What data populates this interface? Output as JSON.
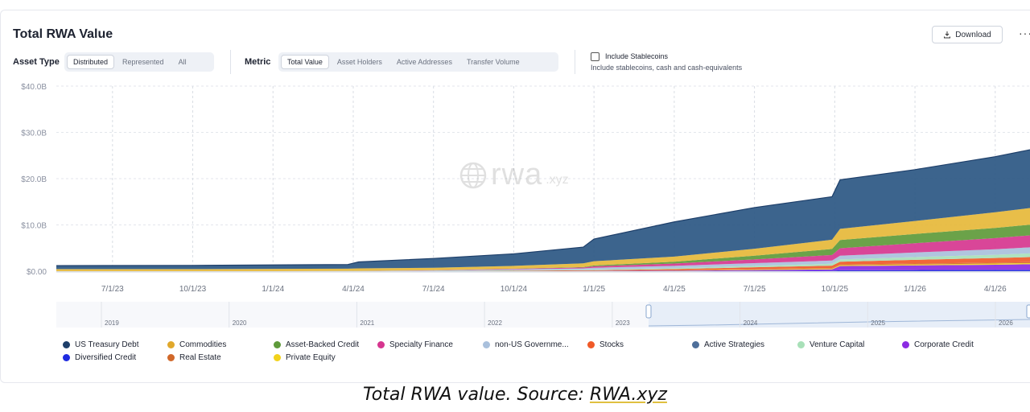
{
  "header": {
    "title": "Total RWA Value",
    "download_label": "Download",
    "more_label": "···"
  },
  "controls": {
    "asset_type_label": "Asset Type",
    "asset_type_options": [
      "Distributed",
      "Represented",
      "All"
    ],
    "asset_type_selected": "Distributed",
    "metric_label": "Metric",
    "metric_options": [
      "Total Value",
      "Asset Holders",
      "Active Addresses",
      "Transfer Volume"
    ],
    "metric_selected": "Total Value",
    "stablecoins_label": "Include Stablecoins",
    "stablecoins_desc": "Include stablecoins, cash and cash-equivalents",
    "stablecoins_checked": false
  },
  "watermark": {
    "main": "rwa",
    "suffix": ".xyz"
  },
  "chart_data": {
    "type": "area",
    "stacked": true,
    "title": "Total RWA Value",
    "y_tick_labels": [
      "$0.00",
      "$10.0B",
      "$20.0B",
      "$30.0B",
      "$40.0B"
    ],
    "y_ticks": [
      0,
      10,
      20,
      30,
      40
    ],
    "ylim": [
      0,
      40
    ],
    "y_unit": "B USD",
    "x_tick_labels": [
      "7/1/23",
      "10/1/23",
      "1/1/24",
      "4/1/24",
      "7/1/24",
      "10/1/24",
      "1/1/25",
      "4/1/25",
      "7/1/25",
      "10/1/25",
      "1/1/26",
      "4/1/26"
    ],
    "x_ticks_t": [
      1,
      4,
      7,
      10,
      13,
      16,
      19,
      22,
      25,
      28,
      31,
      34
    ],
    "xlim_t": [
      -1.1,
      35.3
    ],
    "x": [
      -1.1,
      4,
      7,
      9.8,
      10.2,
      13,
      16,
      18.6,
      19,
      22,
      25,
      27.9,
      28.2,
      31,
      34,
      35.3
    ],
    "series": [
      {
        "name": "Diversified Credit",
        "color": "#1f2be0",
        "values": [
          0,
          0,
          0,
          0,
          0,
          0,
          0,
          0,
          0,
          0,
          0.05,
          0.1,
          0.2,
          0.25,
          0.3,
          0.3
        ]
      },
      {
        "name": "Corporate Credit",
        "color": "#8b2be2",
        "values": [
          0,
          0,
          0,
          0,
          0,
          0,
          0,
          0.05,
          0.05,
          0.1,
          0.2,
          0.3,
          0.9,
          1.0,
          1.1,
          1.2
        ]
      },
      {
        "name": "Private Equity",
        "color": "#f2d21b",
        "values": [
          0,
          0,
          0,
          0,
          0,
          0,
          0,
          0,
          0,
          0.05,
          0.1,
          0.15,
          0.2,
          0.2,
          0.25,
          0.25
        ]
      },
      {
        "name": "Real Estate",
        "color": "#d1682a",
        "values": [
          0,
          0,
          0,
          0,
          0,
          0,
          0.05,
          0.05,
          0.05,
          0.1,
          0.1,
          0.15,
          0.15,
          0.2,
          0.2,
          0.2
        ]
      },
      {
        "name": "Stocks",
        "color": "#f05a28",
        "values": [
          0,
          0,
          0,
          0,
          0,
          0,
          0.05,
          0.1,
          0.1,
          0.2,
          0.4,
          0.5,
          0.6,
          0.8,
          1.0,
          1.1
        ]
      },
      {
        "name": "Venture Capital",
        "color": "#a8e0b8",
        "values": [
          0,
          0,
          0,
          0,
          0,
          0.05,
          0.1,
          0.1,
          0.15,
          0.2,
          0.3,
          0.4,
          0.5,
          0.6,
          0.7,
          0.8
        ]
      },
      {
        "name": "non-US Government Debt",
        "color": "#a9c0dc",
        "values": [
          0,
          0,
          0,
          0.05,
          0.05,
          0.1,
          0.2,
          0.3,
          0.4,
          0.5,
          0.6,
          0.7,
          0.8,
          1.0,
          1.2,
          1.3
        ]
      },
      {
        "name": "Specialty Finance",
        "color": "#d6368f",
        "values": [
          0,
          0,
          0,
          0,
          0,
          0.05,
          0.1,
          0.2,
          0.3,
          0.5,
          0.8,
          1.2,
          1.6,
          2.0,
          2.4,
          2.6
        ]
      },
      {
        "name": "Asset-Backed Credit",
        "color": "#5e9a3a",
        "values": [
          0,
          0,
          0,
          0,
          0,
          0,
          0.05,
          0.1,
          0.2,
          0.4,
          0.8,
          1.3,
          1.8,
          2.0,
          2.2,
          2.3
        ]
      },
      {
        "name": "Commodities",
        "color": "#e6b83a",
        "values": [
          0.45,
          0.45,
          0.5,
          0.5,
          0.55,
          0.55,
          0.6,
          0.8,
          0.9,
          1.1,
          1.5,
          2.0,
          2.4,
          2.8,
          3.4,
          3.6
        ]
      },
      {
        "name": "Active Strategies",
        "color": "#4e6f9a",
        "values": [
          0,
          0,
          0,
          0,
          0,
          0,
          0,
          0,
          0,
          0,
          0,
          0,
          0,
          0,
          0,
          0
        ]
      },
      {
        "name": "US Treasury Debt",
        "color": "#2b5783",
        "values": [
          0.75,
          0.8,
          0.85,
          0.9,
          1.4,
          2.0,
          2.6,
          3.5,
          4.8,
          7.5,
          8.9,
          9.3,
          10.6,
          11.1,
          12.0,
          12.6
        ]
      }
    ],
    "navigator_years": [
      "2019",
      "2020",
      "2021",
      "2022",
      "2023",
      "2024",
      "2025",
      "2026"
    ],
    "legend_placement": "bottom"
  },
  "legend": [
    {
      "label": "US Treasury Debt",
      "color": "#1e3f6a"
    },
    {
      "label": "Commodities",
      "color": "#e0a82c"
    },
    {
      "label": "Asset-Backed Credit",
      "color": "#5e9a3a"
    },
    {
      "label": "Specialty Finance",
      "color": "#d6368f"
    },
    {
      "label": "non-US Governme...",
      "color": "#a9c0dc"
    },
    {
      "label": "Stocks",
      "color": "#f05a28"
    },
    {
      "label": "Active Strategies",
      "color": "#4e6f9a"
    },
    {
      "label": "Venture Capital",
      "color": "#a8e0b8"
    },
    {
      "label": "Corporate Credit",
      "color": "#8b2be2"
    },
    {
      "label": "Diversified Credit",
      "color": "#1f2be0"
    },
    {
      "label": "Real Estate",
      "color": "#d1682a"
    },
    {
      "label": "Private Equity",
      "color": "#f2d21b"
    }
  ],
  "caption": {
    "prefix": "Total RWA value. Source: ",
    "source": "RWA.xyz"
  }
}
